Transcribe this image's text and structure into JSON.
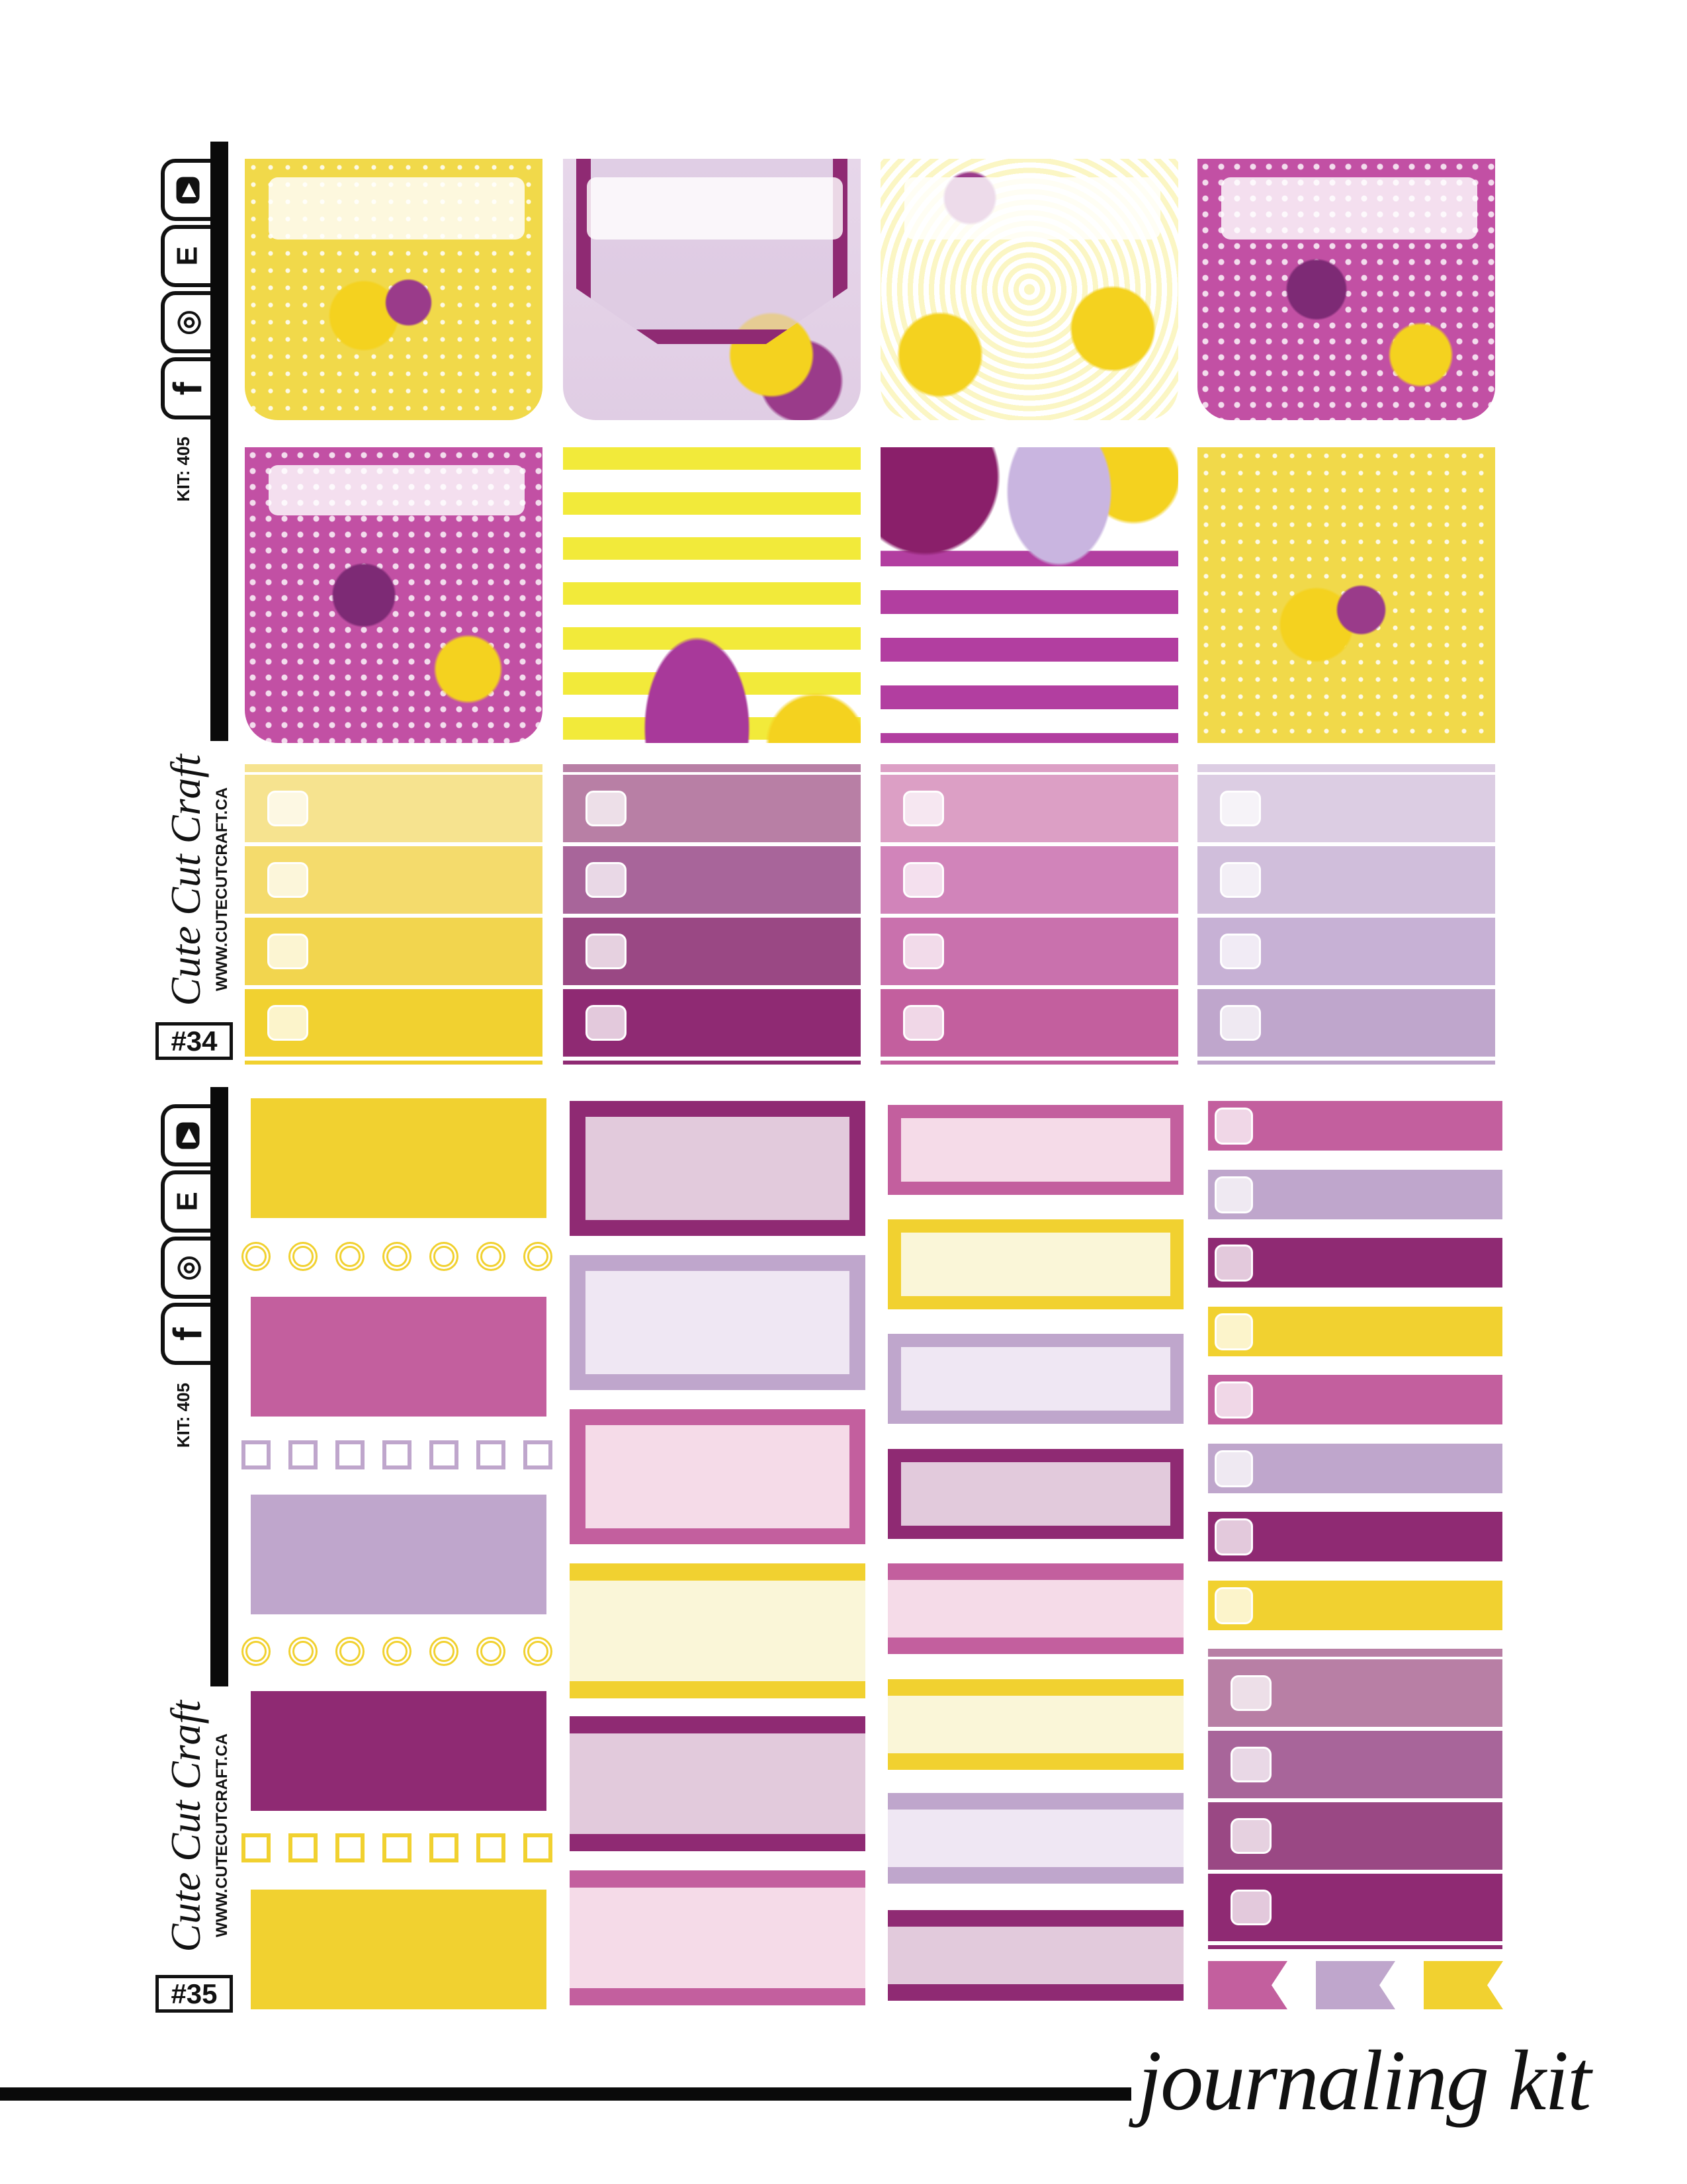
{
  "brand": {
    "name": "Cute Cut Craft",
    "url": "WWW.CUTECUTCRAFT.CA",
    "kit_label": "KIT:",
    "kit_number": "405"
  },
  "icons": [
    "youtube-icon",
    "etsy-icon",
    "instagram-icon",
    "facebook-icon"
  ],
  "icon_glyphs": {
    "youtube-icon": "▶",
    "etsy-icon": "E",
    "instagram-icon": "◎",
    "facebook-icon": "f"
  },
  "sheets": [
    {
      "number": "#34"
    },
    {
      "number": "#35"
    }
  ],
  "footer": {
    "title": "journaling kit"
  },
  "colors": {
    "yellow": "#f1d130",
    "magenta": "#8f2a73",
    "pink": "#c35f9e",
    "lavender": "#bfa6cc",
    "pale_yellow": "#faf6d8",
    "pale_magenta": "#e2cadc",
    "pale_pink": "#f5dbe8",
    "pale_lavender": "#efe7f3"
  },
  "top": {
    "floral_tiles_row1": [
      "yellow-polka-floral",
      "lavender-hexagon-label-floral",
      "yellow-swirl-floral",
      "magenta-polka-floral"
    ],
    "floral_tiles_row2": [
      "magenta-polka-floral",
      "yellow-stripe-floral",
      "magenta-stripe-floral",
      "yellow-polka-floral"
    ],
    "checklists": [
      [
        "#f6e38f",
        "#f4db6c",
        "#f2d54e",
        "#f1d130"
      ],
      [
        "#b87fa5",
        "#a8659a",
        "#9a4884",
        "#8f2a73"
      ],
      [
        "#dc9fc5",
        "#d184ba",
        "#c971ad",
        "#c35f9e"
      ],
      [
        "#dccde3",
        "#d0bedb",
        "#c7b1d5",
        "#bfa6cc"
      ]
    ]
  },
  "bottom": {
    "col1_blocks": [
      "#f1d130",
      "#c35f9e",
      "#bfa6cc",
      "#8f2a73",
      "#f1d130"
    ],
    "col1_trackers": [
      {
        "shape": "circle",
        "color": "#f1d130"
      },
      {
        "shape": "square",
        "color": "#bfa6cc"
      },
      {
        "shape": "circle",
        "color": "#f1d130"
      },
      {
        "shape": "square",
        "color": "#f1d130"
      }
    ],
    "col2_framed": [
      [
        "#8f2a73",
        "#e2cadc"
      ],
      [
        "#bfa6cc",
        "#efe7f3"
      ],
      [
        "#c35f9e",
        "#f5dbe8"
      ]
    ],
    "col2_striped": [
      [
        "#f1d130",
        "#faf6d8"
      ],
      [
        "#8f2a73",
        "#e2cadc"
      ],
      [
        "#c35f9e",
        "#f5dbe8"
      ]
    ],
    "col3_framed": [
      [
        "#c35f9e",
        "#f5dbe8"
      ],
      [
        "#f1d130",
        "#faf6d8"
      ],
      [
        "#bfa6cc",
        "#efe7f3"
      ],
      [
        "#8f2a73",
        "#e2cadc"
      ]
    ],
    "col3_striped": [
      [
        "#c35f9e",
        "#f5dbe8"
      ],
      [
        "#f1d130",
        "#faf6d8"
      ],
      [
        "#bfa6cc",
        "#efe7f3"
      ],
      [
        "#8f2a73",
        "#e2cadc"
      ]
    ],
    "col4_bars": [
      "#c35f9e",
      "#bfa6cc",
      "#8f2a73",
      "#f1d130",
      "#c35f9e",
      "#bfa6cc",
      "#8f2a73",
      "#f1d130"
    ],
    "col4_checklist": [
      "#b87fa5",
      "#a8659a",
      "#9a4884",
      "#8f2a73"
    ],
    "flags": [
      "#c35f9e",
      "#bfa6cc",
      "#f1d130"
    ]
  }
}
